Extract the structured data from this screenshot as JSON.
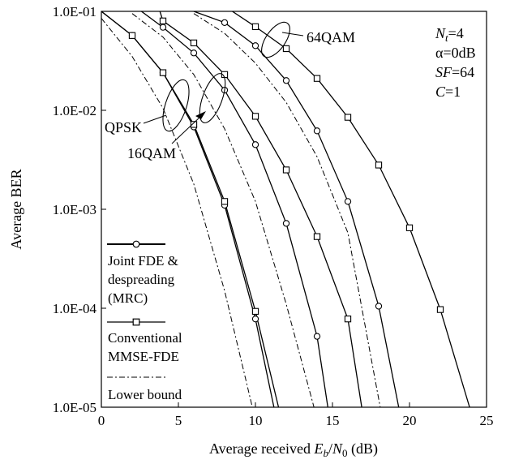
{
  "chart_data": {
    "type": "line",
    "title": "",
    "xlabel": {
      "prefix": "Average received ",
      "e": "E",
      "b": "b",
      "slash": "/",
      "n": "N",
      "zero": "0",
      "suffix": " (dB)"
    },
    "ylabel": "Average BER",
    "x_scale": "linear",
    "y_scale": "log",
    "xlim": [
      0,
      25
    ],
    "ylim": [
      1e-05,
      0.1
    ],
    "x_ticks": [
      0,
      5,
      10,
      15,
      20,
      25
    ],
    "x_tick_labels": [
      "0",
      "5",
      "10",
      "15",
      "20",
      "25"
    ],
    "y_ticks": [
      0.1,
      0.01,
      0.001,
      0.0001,
      1e-05
    ],
    "y_tick_labels": [
      "1.0E-01",
      "1.0E-02",
      "1.0E-03",
      "1.0E-04",
      "1.0E-05"
    ],
    "grid": false,
    "legend_position": "bottom-left",
    "legend": [
      {
        "key": "joint",
        "lines": [
          "Joint FDE &",
          "despreading",
          "(MRC)"
        ],
        "marker": "circle",
        "style": "solid"
      },
      {
        "key": "conv",
        "lines": [
          "Conventional",
          "MMSE-FDE"
        ],
        "marker": "square",
        "style": "solid"
      },
      {
        "key": "bound",
        "lines": [
          "Lower bound"
        ],
        "marker": "none",
        "style": "dashdot"
      }
    ],
    "annotations": {
      "params": [
        {
          "main": "N",
          "sub": "t",
          "rest": "=4",
          "italic": true
        },
        {
          "main": "α=0dB",
          "sub": "",
          "rest": "",
          "italic": false
        },
        {
          "main": "SF",
          "sub": "",
          "rest": "=64",
          "italic": true
        },
        {
          "main": "C",
          "sub": "",
          "rest": "=1",
          "italic": true
        }
      ],
      "groups": [
        "QPSK",
        "16QAM",
        "64QAM"
      ]
    },
    "series": [
      {
        "name": "QPSK Joint FDE & despreading (MRC)",
        "group": "QPSK",
        "kind": "joint",
        "marker": "circle",
        "style": "solid",
        "x": [
          0,
          2,
          4,
          6,
          8,
          10,
          11.2
        ],
        "y": [
          0.1,
          0.057,
          0.024,
          0.0068,
          0.0011,
          7.8e-05,
          1e-05
        ]
      },
      {
        "name": "QPSK Conventional MMSE-FDE",
        "group": "QPSK",
        "kind": "conv",
        "marker": "square",
        "style": "solid",
        "x": [
          0,
          2,
          4,
          6,
          8,
          10,
          11.5
        ],
        "y": [
          0.1,
          0.057,
          0.024,
          0.0072,
          0.0012,
          9.3e-05,
          1e-05
        ]
      },
      {
        "name": "QPSK Lower bound",
        "group": "QPSK",
        "kind": "bound",
        "marker": "none",
        "style": "dashdot",
        "x": [
          0,
          2,
          4,
          6,
          8,
          9.8
        ],
        "y": [
          0.085,
          0.035,
          0.0105,
          0.0018,
          0.00015,
          1e-05
        ]
      },
      {
        "name": "16QAM Joint FDE & despreading (MRC)",
        "group": "16QAM",
        "kind": "joint",
        "marker": "circle",
        "style": "solid",
        "x": [
          2.6,
          4,
          6,
          8,
          10,
          12,
          14,
          14.7
        ],
        "y": [
          0.1,
          0.069,
          0.038,
          0.016,
          0.0045,
          0.00072,
          5.2e-05,
          1e-05
        ]
      },
      {
        "name": "16QAM Conventional MMSE-FDE",
        "group": "16QAM",
        "kind": "conv",
        "marker": "square",
        "style": "solid",
        "x": [
          3.8,
          4,
          6,
          8,
          10,
          12,
          14,
          16,
          16.9
        ],
        "y": [
          0.1,
          0.08,
          0.048,
          0.023,
          0.0087,
          0.0025,
          0.00053,
          7.8e-05,
          1e-05
        ]
      },
      {
        "name": "16QAM Lower bound",
        "group": "16QAM",
        "kind": "bound",
        "marker": "none",
        "style": "dashdot",
        "x": [
          2,
          4,
          6,
          8,
          10,
          12,
          13.8
        ],
        "y": [
          0.095,
          0.055,
          0.023,
          0.0065,
          0.0012,
          0.00011,
          1e-05
        ]
      },
      {
        "name": "64QAM Joint FDE & despreading (MRC)",
        "group": "64QAM",
        "kind": "joint",
        "marker": "circle",
        "style": "solid",
        "x": [
          6,
          8,
          10,
          12,
          14,
          16,
          18,
          19.3
        ],
        "y": [
          0.1,
          0.077,
          0.045,
          0.02,
          0.0062,
          0.0012,
          0.000105,
          1e-05
        ]
      },
      {
        "name": "64QAM Conventional MMSE-FDE",
        "group": "64QAM",
        "kind": "conv",
        "marker": "square",
        "style": "solid",
        "x": [
          8.5,
          10,
          12,
          14,
          16,
          18,
          20,
          22,
          23.9
        ],
        "y": [
          0.1,
          0.07,
          0.042,
          0.021,
          0.0085,
          0.0028,
          0.00065,
          9.7e-05,
          1e-05
        ]
      },
      {
        "name": "64QAM Lower bound",
        "group": "64QAM",
        "kind": "bound",
        "marker": "none",
        "style": "dashdot",
        "x": [
          6,
          8,
          10,
          12,
          14,
          16,
          18.1
        ],
        "y": [
          0.095,
          0.06,
          0.03,
          0.012,
          0.0034,
          0.00058,
          1e-05
        ]
      }
    ]
  }
}
